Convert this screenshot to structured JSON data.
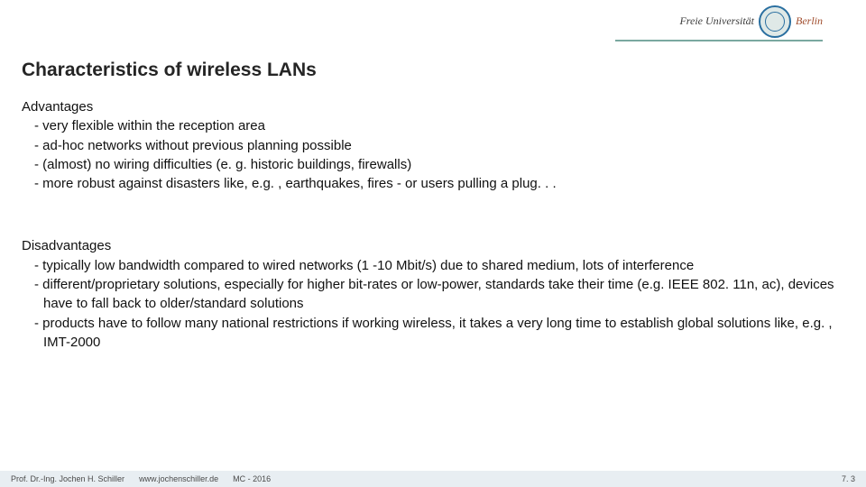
{
  "header": {
    "logo_text_left": "Freie Universität",
    "logo_text_right": "Berlin",
    "colors": {
      "underline": "#7aa8a0",
      "seal_border": "#2a6fa0",
      "seal_bg": "#dfe9e7"
    }
  },
  "title": "Characteristics of wireless LANs",
  "sections": [
    {
      "heading": "Advantages",
      "items": [
        "very flexible within the reception area",
        "ad-hoc networks without previous planning possible",
        "(almost) no wiring difficulties (e. g. historic buildings, firewalls)",
        "more robust against disasters like, e.g. , earthquakes, fires - or users pulling a plug. . ."
      ]
    },
    {
      "heading": "Disadvantages",
      "items": [
        "typically low bandwidth compared to wired networks (1 -10 Mbit/s) due to shared medium, lots of interference",
        "different/proprietary solutions, especially for higher bit-rates or low-power, standards take their time (e.g. IEEE 802. 11n, ac), devices have to fall back to older/standard solutions",
        "products have to follow many national restrictions if working wireless, it takes a very long time to establish global solutions like, e.g. , IMT-2000"
      ]
    }
  ],
  "footer": {
    "author": "Prof. Dr.-Ing. Jochen H. Schiller",
    "url": "www.jochenschiller.de",
    "course": "MC - 2016",
    "page": "7. 3"
  },
  "style": {
    "title_fontsize": 21,
    "body_fontsize": 15,
    "footer_fontsize": 9,
    "footer_bg": "#e8eef2",
    "text_color": "#111111",
    "background": "#ffffff"
  }
}
